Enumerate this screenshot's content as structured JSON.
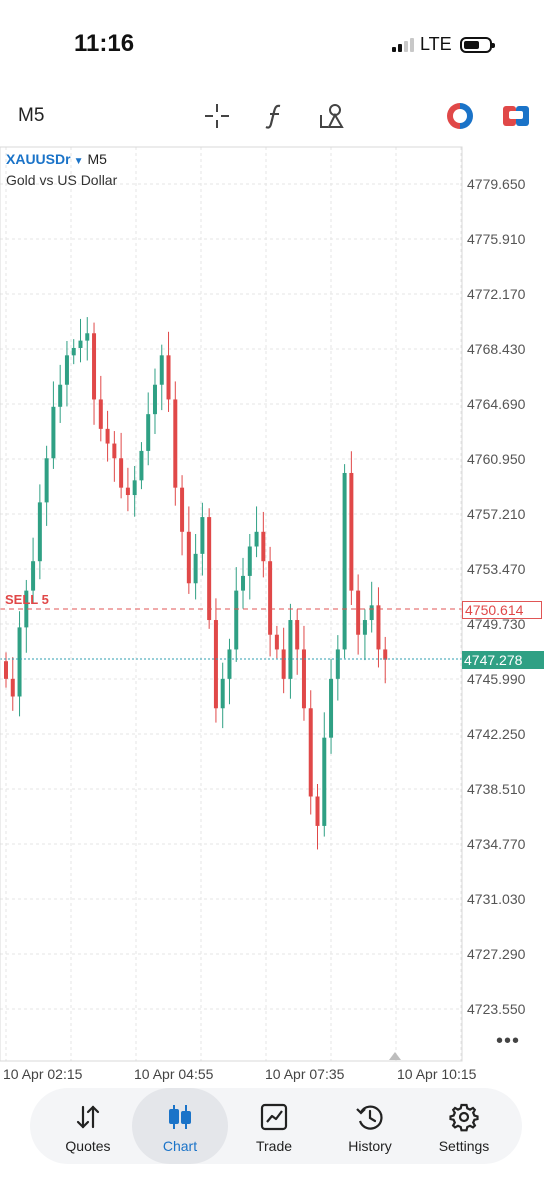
{
  "status_bar": {
    "time": "11:16",
    "network": "LTE"
  },
  "toolbar": {
    "timeframe": "M5",
    "icons": [
      "crosshair-icon",
      "indicators-function-icon",
      "objects-shapes-icon",
      "one-click-trading-icon",
      "trade-toggle-icon"
    ]
  },
  "chart": {
    "symbol": "XAUUSDr",
    "timeframe": "M5",
    "description": "Gold vs US Dollar",
    "price_labels": [
      "4779.650",
      "4775.910",
      "4772.170",
      "4768.430",
      "4764.690",
      "4760.950",
      "4757.210",
      "4753.470",
      "4749.730",
      "4745.990",
      "4742.250",
      "4738.510",
      "4734.770",
      "4731.030",
      "4727.290",
      "4723.550"
    ],
    "time_labels": [
      "10 Apr 02:15",
      "10 Apr 04:55",
      "10 Apr 07:35",
      "10 Apr 10:15"
    ],
    "sell_order_label": "SELL 5",
    "sell_order_price": "4750.614",
    "bid_price": "4747.278",
    "more_label": "•••",
    "colors": {
      "bull": "#2fa084",
      "bear": "#e04848",
      "grid": "#e6e6e6"
    }
  },
  "chart_data": {
    "type": "candlestick",
    "x_range": [
      "10 Apr 02:15",
      "10 Apr 10:15"
    ],
    "ylim": [
      4723.55,
      4779.65
    ],
    "candles_close_trend": [
      4746.0,
      4744.8,
      4749.5,
      4752.0,
      4754.0,
      4758.0,
      4761.0,
      4764.5,
      4766.0,
      4768.0,
      4768.5,
      4769.0,
      4769.5,
      4765.0,
      4763.0,
      4762.0,
      4761.0,
      4759.0,
      4758.5,
      4759.5,
      4761.5,
      4764.0,
      4766.0,
      4768.0,
      4765.0,
      4759.0,
      4756.0,
      4752.5,
      4754.5,
      4757.0,
      4750.0,
      4744.0,
      4746.0,
      4748.0,
      4752.0,
      4753.0,
      4755.0,
      4756.0,
      4754.0,
      4749.0,
      4748.0,
      4746.0,
      4750.0,
      4748.0,
      4744.0,
      4738.0,
      4736.0,
      4742.0,
      4746.0,
      4748.0,
      4760.0,
      4752.0,
      4749.0,
      4750.0,
      4751.0,
      4748.0,
      4747.3
    ],
    "sell_order": {
      "label": "SELL 5",
      "price": 4750.614
    },
    "bid": 4747.278
  },
  "tabs": [
    {
      "label": "Quotes",
      "icon": "quotes-arrows-icon",
      "active": false
    },
    {
      "label": "Chart",
      "icon": "chart-candles-icon",
      "active": true
    },
    {
      "label": "Trade",
      "icon": "trade-line-chart-icon",
      "active": false
    },
    {
      "label": "History",
      "icon": "history-clock-icon",
      "active": false
    },
    {
      "label": "Settings",
      "icon": "settings-gear-icon",
      "active": false
    }
  ]
}
